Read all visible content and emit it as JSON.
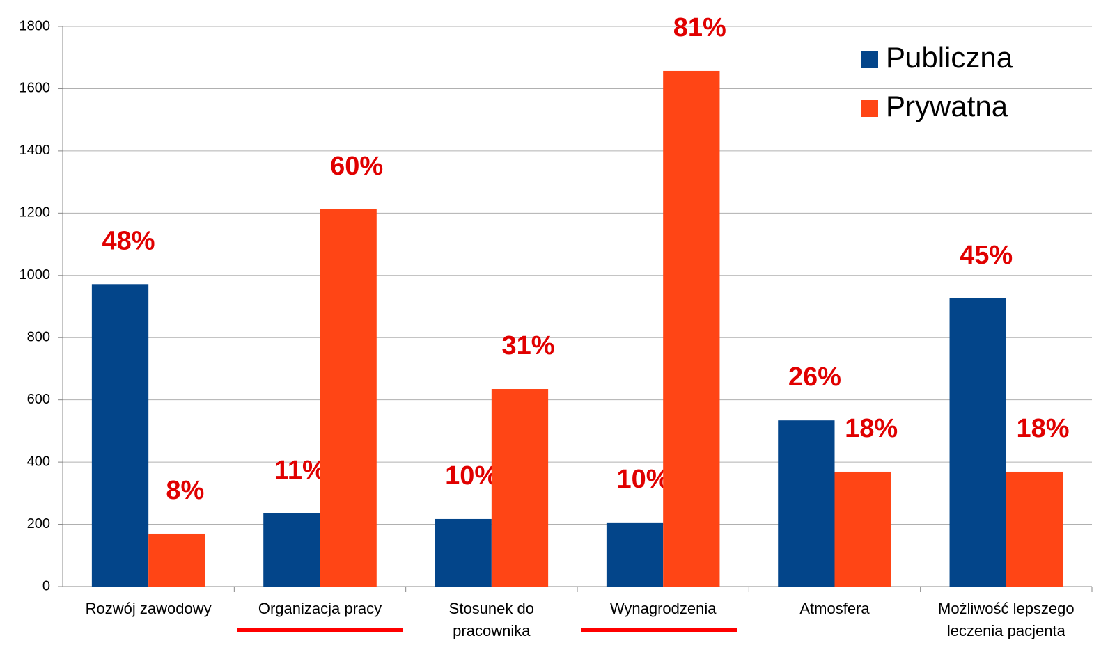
{
  "chart_data": {
    "type": "bar",
    "categories": [
      "Rozwój zawodowy",
      "Organizacja pracy",
      "Stosunek do\npracownika",
      "Wynagrodzenia",
      "Atmosfera",
      "Możliwość lepszego\nleczenia pacjenta"
    ],
    "series": [
      {
        "name": "Publiczna",
        "color": "#03458a",
        "values": [
          972,
          235,
          217,
          206,
          534,
          926
        ],
        "labels": [
          "48%",
          "11%",
          "10%",
          "10%",
          "26%",
          "45%"
        ]
      },
      {
        "name": "Prywatna",
        "color": "#ff4515",
        "values": [
          170,
          1212,
          635,
          1657,
          369,
          369
        ],
        "labels": [
          "8%",
          "60%",
          "31%",
          "81%",
          "18%",
          "18%"
        ]
      }
    ],
    "ylim": [
      0,
      1800
    ],
    "yticks": [
      0,
      200,
      400,
      600,
      800,
      1000,
      1200,
      1400,
      1600,
      1800
    ],
    "grid": true,
    "legend": "top-right"
  }
}
